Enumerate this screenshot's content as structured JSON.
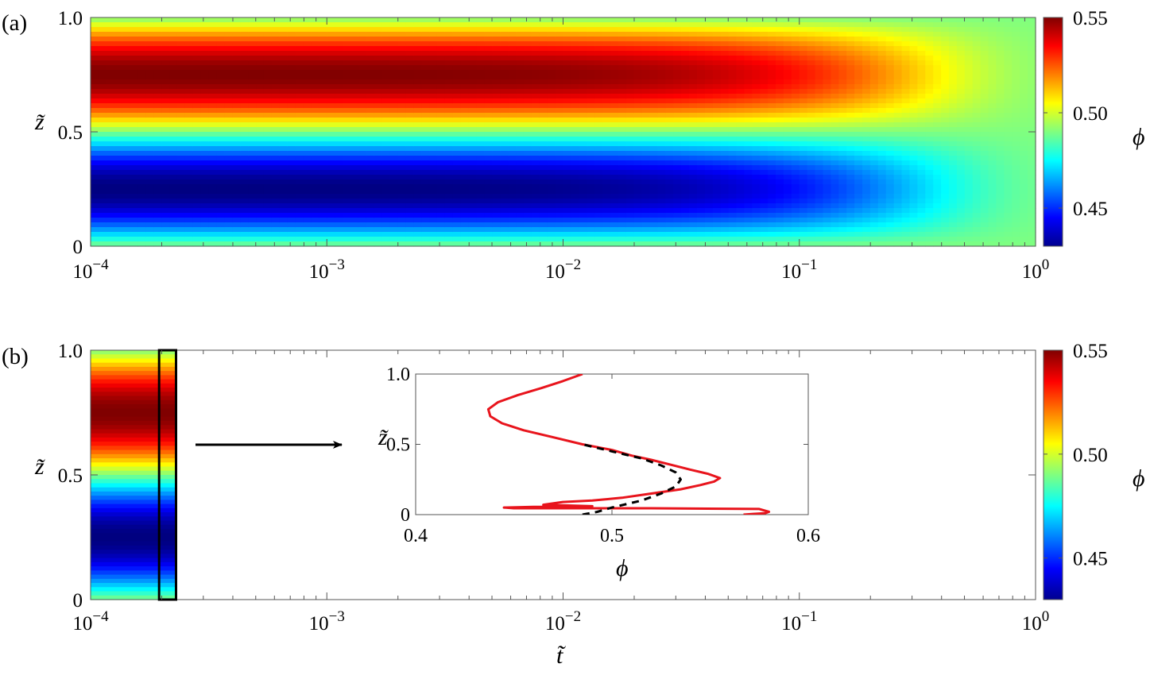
{
  "chart_data": [
    {
      "type": "heatmap",
      "panel_label": "(a)",
      "x_scale": "log",
      "xlim": [
        0.0001,
        1
      ],
      "x_tick_labels": [
        {
          "base": "10",
          "exp": "−4",
          "value": 0.0001
        },
        {
          "base": "10",
          "exp": "−3",
          "value": 0.001
        },
        {
          "base": "10",
          "exp": "−2",
          "value": 0.01
        },
        {
          "base": "10",
          "exp": "−1",
          "value": 0.1
        },
        {
          "base": "10",
          "exp": "0",
          "value": 1
        }
      ],
      "ylabel": "z̃",
      "ylim": [
        0,
        1
      ],
      "y_ticks": [
        0,
        0.5,
        1.0
      ],
      "y_tick_labels": [
        "0",
        "0.5",
        "1.0"
      ],
      "colorbar": {
        "label": "ϕ",
        "range": [
          0.43,
          0.55
        ],
        "ticks": [
          0.45,
          0.5,
          0.55
        ],
        "tick_labels": [
          "0.45",
          "0.50",
          "0.55"
        ],
        "colormap": "jet"
      },
      "field": {
        "initial_profile": "phi = 0.49 - 0.06*sin(2*pi*z)",
        "relaxes_to": 0.49,
        "t_relax": 0.3
      }
    },
    {
      "type": "heatmap",
      "panel_label": "(b)",
      "x_scale": "log",
      "xlim": [
        0.0001,
        1
      ],
      "xlabel": "t̃",
      "x_tick_labels": [
        {
          "base": "10",
          "exp": "−4",
          "value": 0.0001
        },
        {
          "base": "10",
          "exp": "−3",
          "value": 0.001
        },
        {
          "base": "10",
          "exp": "−2",
          "value": 0.01
        },
        {
          "base": "10",
          "exp": "−1",
          "value": 0.1
        },
        {
          "base": "10",
          "exp": "0",
          "value": 1
        }
      ],
      "ylabel": "z̃",
      "ylim": [
        0,
        1
      ],
      "y_ticks": [
        0,
        0.5,
        1.0
      ],
      "y_tick_labels": [
        "0",
        "0.5",
        "1.0"
      ],
      "colorbar": {
        "label": "ϕ",
        "range": [
          0.43,
          0.55
        ],
        "ticks": [
          0.45,
          0.5,
          0.55
        ],
        "tick_labels": [
          "0.45",
          "0.50",
          "0.55"
        ],
        "colormap": "jet"
      },
      "field_extent_t": [
        0.0001,
        0.00023
      ],
      "highlight_box_t": [
        0.000195,
        0.00023
      ],
      "arrow": "points from highlighted box to inset",
      "inset": {
        "type": "line",
        "xlabel": "ϕ",
        "ylabel": "z̃",
        "xlim": [
          0.4,
          0.6
        ],
        "ylim": [
          0,
          1
        ],
        "x_ticks": [
          0.4,
          0.5,
          0.6
        ],
        "x_tick_labels": [
          "0.4",
          "0.5",
          "0.6"
        ],
        "y_ticks": [
          0,
          0.5,
          1.0
        ],
        "y_tick_labels": [
          "0",
          "0.5",
          "1.0"
        ],
        "series": [
          {
            "color": "#e8141c",
            "style": "solid",
            "points": [
              [
                0.567,
                0
              ],
              [
                0.572,
                0.005
              ],
              [
                0.578,
                0.01
              ],
              [
                0.58,
                0.02
              ],
              [
                0.575,
                0.04
              ],
              [
                0.52,
                0.045
              ],
              [
                0.45,
                0.045
              ],
              [
                0.445,
                0.05
              ],
              [
                0.46,
                0.055
              ],
              [
                0.49,
                0.06
              ],
              [
                0.465,
                0.07
              ],
              [
                0.47,
                0.08
              ],
              [
                0.475,
                0.09
              ],
              [
                0.49,
                0.1
              ],
              [
                0.505,
                0.12
              ],
              [
                0.52,
                0.15
              ],
              [
                0.535,
                0.18
              ],
              [
                0.545,
                0.21
              ],
              [
                0.552,
                0.235
              ],
              [
                0.555,
                0.26
              ],
              [
                0.549,
                0.29
              ],
              [
                0.54,
                0.32
              ],
              [
                0.53,
                0.355
              ],
              [
                0.52,
                0.39
              ],
              [
                0.51,
                0.42
              ],
              [
                0.5,
                0.46
              ],
              [
                0.485,
                0.5
              ],
              [
                0.47,
                0.55
              ],
              [
                0.455,
                0.6
              ],
              [
                0.444,
                0.65
              ],
              [
                0.438,
                0.7
              ],
              [
                0.437,
                0.75
              ],
              [
                0.442,
                0.8
              ],
              [
                0.452,
                0.85
              ],
              [
                0.464,
                0.9
              ],
              [
                0.475,
                0.95
              ],
              [
                0.485,
                1.0
              ]
            ]
          },
          {
            "color": "#000000",
            "style": "dashed",
            "points": [
              [
                0.485,
                0
              ],
              [
                0.4925,
                0.02
              ],
              [
                0.5,
                0.05
              ],
              [
                0.515,
                0.1
              ],
              [
                0.525,
                0.15
              ],
              [
                0.5325,
                0.2
              ],
              [
                0.535,
                0.25
              ],
              [
                0.5325,
                0.3
              ],
              [
                0.525,
                0.35
              ],
              [
                0.515,
                0.4
              ],
              [
                0.5,
                0.45
              ],
              [
                0.485,
                0.5
              ]
            ]
          }
        ]
      }
    }
  ]
}
